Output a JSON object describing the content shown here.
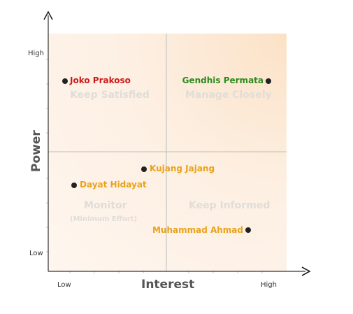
{
  "axes": {
    "x_title": "Interest",
    "y_title": "Power",
    "x_low": "Low",
    "x_high": "High",
    "y_low": "Low",
    "y_high": "High"
  },
  "quadrants": {
    "top_left": "Keep Satisfied",
    "top_right": "Manage Closely",
    "bottom_left": "Monitor",
    "bottom_left_sub": "(Minimum Effort)",
    "bottom_right": "Keep Informed"
  },
  "stakeholders": [
    {
      "name": "Joko Prakoso",
      "color": "#cc1a1a"
    },
    {
      "name": "Gendhis Permata",
      "color": "#2f8a1e"
    },
    {
      "name": "Kujang Jajang",
      "color": "#eaa21a"
    },
    {
      "name": "Dayat Hidayat",
      "color": "#eaa21a"
    },
    {
      "name": "Muhammad Ahmad",
      "color": "#eaa21a"
    }
  ]
}
